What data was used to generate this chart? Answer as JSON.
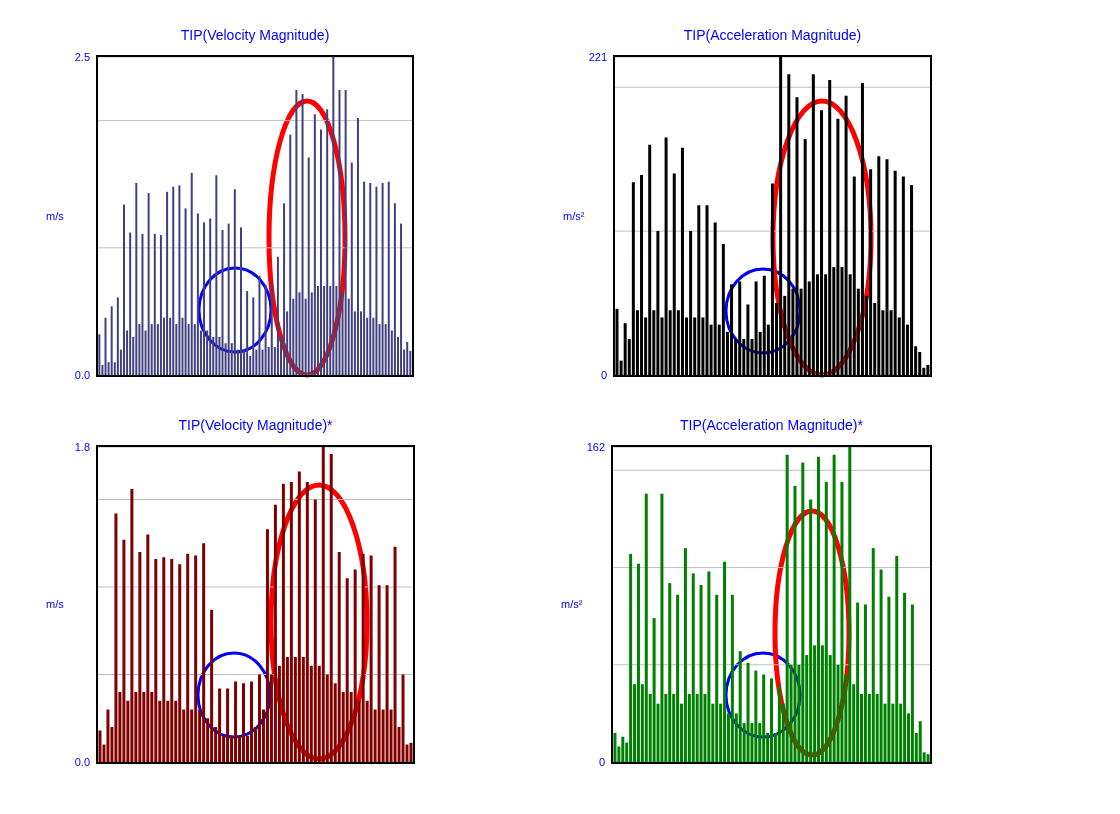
{
  "chart_data": [
    {
      "type": "bar",
      "title": "TIP(Velocity Magnitude)",
      "ylabel": "m/s",
      "color": "#404080",
      "grid": "y",
      "tick_labels": "y",
      "ylim": [
        0,
        2.5
      ],
      "yticks": [
        {
          "value": 0,
          "label": "0.0"
        },
        {
          "value": 1,
          "label": null
        },
        {
          "value": 2,
          "label": null
        },
        2.5
      ],
      "categories": [
        null,
        null,
        null,
        null,
        null,
        null,
        null,
        null,
        null,
        null,
        null,
        null,
        null,
        null,
        null,
        null,
        null,
        null,
        null,
        null,
        null,
        null,
        null,
        null,
        null,
        null,
        null,
        null,
        null,
        null,
        null,
        null,
        null,
        null,
        null,
        null,
        null,
        null,
        null,
        null,
        null,
        null,
        null,
        null,
        null,
        null,
        null,
        null,
        null,
        null,
        null,
        null,
        null,
        null,
        null,
        null,
        null,
        null,
        null,
        null,
        null,
        null,
        null,
        null,
        null,
        null,
        null,
        null,
        null,
        null,
        null,
        null,
        null,
        null,
        null,
        null,
        null,
        null,
        null,
        null,
        null,
        null,
        null,
        null,
        null,
        null,
        null,
        null,
        null,
        null,
        null,
        null,
        null,
        null,
        null,
        null,
        null,
        null,
        null,
        null,
        null,
        null
      ],
      "values": [
        0.32,
        0.08,
        0.45,
        0.1,
        0.54,
        0.1,
        0.61,
        0.2,
        1.34,
        0.35,
        1.12,
        0.3,
        1.51,
        0.4,
        1.11,
        0.35,
        1.43,
        0.4,
        1.11,
        0.4,
        1.1,
        0.45,
        1.44,
        0.45,
        1.48,
        0.4,
        1.49,
        0.45,
        1.31,
        0.4,
        1.59,
        0.4,
        1.27,
        0.35,
        1.2,
        0.35,
        1.23,
        0.3,
        1.57,
        0.3,
        1.14,
        0.25,
        1.19,
        0.25,
        1.46,
        0.2,
        1.16,
        0.2,
        0.66,
        0.15,
        0.61,
        0.2,
        0.78,
        0.2,
        0.71,
        0.22,
        0.73,
        0.22,
        0.93,
        0.3,
        1.35,
        0.5,
        1.89,
        0.6,
        2.24,
        0.65,
        2.21,
        0.6,
        1.71,
        0.65,
        2.05,
        0.7,
        1.93,
        0.7,
        2.09,
        0.7,
        2.5,
        0.7,
        2.24,
        0.65,
        2.24,
        0.6,
        1.67,
        0.5,
        2.02,
        0.5,
        1.52,
        0.45,
        1.51,
        0.45,
        1.48,
        0.4,
        1.51,
        0.4,
        1.52,
        0.35,
        1.35,
        0.3,
        1.19,
        0.2,
        0.26,
        0.19
      ]
    },
    {
      "type": "bar",
      "title": "TIP(Acceleration Magnitude)",
      "ylabel": "m/s²",
      "color": "#000000",
      "grid": "y",
      "tick_labels": "y",
      "ylim": [
        0,
        221
      ],
      "yticks": [
        0,
        {
          "value": 100,
          "label": null
        },
        {
          "value": 200,
          "label": null
        },
        221
      ],
      "categories": [
        null,
        null,
        null,
        null,
        null,
        null,
        null,
        null,
        null,
        null,
        null,
        null,
        null,
        null,
        null,
        null,
        null,
        null,
        null,
        null,
        null,
        null,
        null,
        null,
        null,
        null,
        null,
        null,
        null,
        null,
        null,
        null,
        null,
        null,
        null,
        null,
        null,
        null,
        null,
        null,
        null,
        null,
        null,
        null,
        null,
        null,
        null,
        null,
        null,
        null,
        null,
        null,
        null,
        null,
        null,
        null,
        null,
        null,
        null,
        null,
        null,
        null,
        null,
        null,
        null,
        null,
        null,
        null,
        null,
        null,
        null,
        null,
        null,
        null,
        null,
        null,
        null
      ],
      "values": [
        46,
        10,
        36,
        25,
        134,
        45,
        139,
        40,
        160,
        45,
        100,
        40,
        165,
        45,
        140,
        45,
        158,
        40,
        100,
        40,
        118,
        40,
        118,
        35,
        106,
        35,
        91,
        30,
        63,
        25,
        65,
        25,
        49,
        25,
        65,
        30,
        69,
        35,
        133,
        50,
        221,
        55,
        209,
        60,
        193,
        60,
        164,
        65,
        209,
        70,
        184,
        70,
        205,
        75,
        178,
        75,
        194,
        70,
        138,
        60,
        203,
        55,
        143,
        50,
        152,
        45,
        150,
        45,
        142,
        40,
        138,
        35,
        132,
        20,
        16,
        5,
        7
      ]
    },
    {
      "type": "bar",
      "title": "TIP(Velocity Magnitude)*",
      "ylabel": "m/s",
      "color": "#800000",
      "grid": "y",
      "tick_labels": "y",
      "ylim": [
        0,
        1.8
      ],
      "yticks": [
        {
          "value": 0,
          "label": "0.0"
        },
        {
          "value": 0.5,
          "label": null
        },
        {
          "value": 1,
          "label": null
        },
        {
          "value": 1.5,
          "label": null
        },
        1.8
      ],
      "categories": [
        null,
        null,
        null,
        null,
        null,
        null,
        null,
        null,
        null,
        null,
        null,
        null,
        null,
        null,
        null,
        null,
        null,
        null,
        null,
        null,
        null,
        null,
        null,
        null,
        null,
        null,
        null,
        null,
        null,
        null,
        null,
        null,
        null,
        null,
        null,
        null,
        null,
        null,
        null,
        null,
        null,
        null,
        null,
        null,
        null,
        null,
        null,
        null,
        null,
        null,
        null,
        null,
        null,
        null,
        null,
        null,
        null,
        null,
        null,
        null,
        null,
        null,
        null,
        null,
        null,
        null,
        null,
        null,
        null,
        null,
        null,
        null,
        null,
        null,
        null,
        null,
        null,
        null,
        null
      ],
      "values": [
        0.18,
        0.1,
        0.3,
        0.2,
        1.42,
        0.4,
        1.27,
        0.35,
        1.56,
        0.4,
        1.2,
        0.4,
        1.3,
        0.4,
        1.16,
        0.35,
        1.17,
        0.35,
        1.16,
        0.35,
        1.13,
        0.3,
        1.19,
        0.3,
        1.18,
        0.3,
        1.25,
        0.25,
        0.87,
        0.2,
        0.42,
        0.15,
        0.42,
        0.15,
        0.46,
        0.15,
        0.45,
        0.15,
        0.46,
        0.2,
        0.5,
        0.3,
        1.33,
        0.5,
        1.47,
        0.55,
        1.59,
        0.6,
        1.6,
        0.6,
        1.66,
        0.6,
        1.6,
        0.55,
        1.5,
        0.55,
        1.8,
        0.5,
        1.76,
        0.45,
        1.2,
        0.4,
        1.05,
        0.4,
        1.1,
        0.35,
        1.19,
        0.35,
        1.18,
        0.3,
        1.01,
        0.3,
        1.01,
        0.3,
        1.23,
        0.2,
        0.5,
        0.1,
        0.11
      ]
    },
    {
      "type": "bar",
      "title": "TIP(Acceleration Magnitude)*",
      "ylabel": "m/s²",
      "color": "#008000",
      "grid": "y",
      "tick_labels": "y",
      "ylim": [
        0,
        162
      ],
      "yticks": [
        0,
        {
          "value": 50,
          "label": null
        },
        {
          "value": 100,
          "label": null
        },
        {
          "value": 150,
          "label": null
        },
        162
      ],
      "categories": [
        null,
        null,
        null,
        null,
        null,
        null,
        null,
        null,
        null,
        null,
        null,
        null,
        null,
        null,
        null,
        null,
        null,
        null,
        null,
        null,
        null,
        null,
        null,
        null,
        null,
        null,
        null,
        null,
        null,
        null,
        null,
        null,
        null,
        null,
        null,
        null,
        null,
        null,
        null,
        null,
        null,
        null,
        null,
        null,
        null,
        null,
        null,
        null,
        null,
        null,
        null,
        null,
        null,
        null,
        null,
        null,
        null,
        null,
        null,
        null,
        null,
        null,
        null,
        null,
        null,
        null,
        null,
        null,
        null,
        null,
        null,
        null,
        null,
        null,
        null,
        null,
        null,
        null,
        null,
        null,
        null
      ],
      "values": [
        15,
        8,
        13,
        10,
        107,
        40,
        102,
        40,
        138,
        35,
        74,
        30,
        138,
        35,
        92,
        35,
        86,
        30,
        110,
        35,
        97,
        35,
        91,
        35,
        98,
        30,
        86,
        30,
        103,
        25,
        86,
        25,
        57,
        20,
        51,
        20,
        47,
        20,
        45,
        15,
        43,
        15,
        39,
        30,
        158,
        50,
        142,
        50,
        154,
        55,
        135,
        60,
        157,
        60,
        144,
        55,
        158,
        50,
        144,
        45,
        162,
        40,
        82,
        35,
        81,
        35,
        110,
        35,
        99,
        30,
        85,
        30,
        106,
        30,
        87,
        25,
        81,
        15,
        21,
        5,
        4
      ]
    }
  ]
}
